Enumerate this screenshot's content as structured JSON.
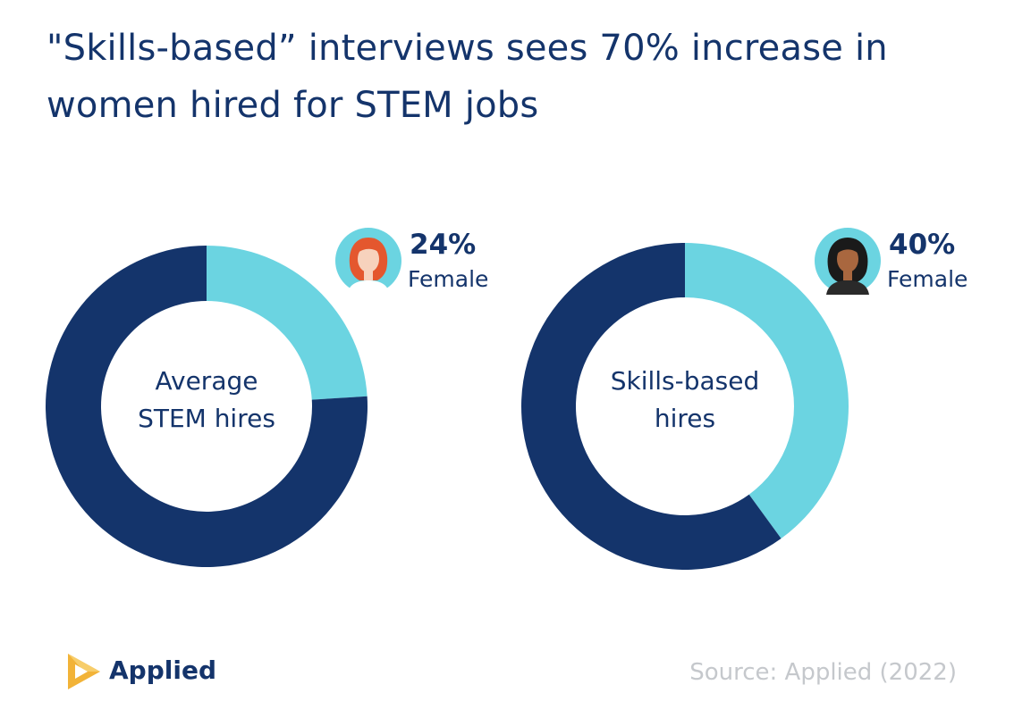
{
  "title": "\"Skills-based” interviews sees 70% increase in women hired for STEM jobs",
  "colors": {
    "navy": "#14346b",
    "cyan": "#6bd4e1",
    "source_gray": "#c5c8cc",
    "logo_gold": "#f2b338"
  },
  "chart_data": [
    {
      "type": "pie",
      "style": "donut",
      "center_label": [
        "Average",
        "STEM hires"
      ],
      "slices": [
        {
          "label": "Female",
          "value": 24,
          "display": "24%",
          "color": "#6bd4e1"
        },
        {
          "label": "",
          "value": 76,
          "color": "#14346b"
        }
      ],
      "avatar_icon": "red-haired-woman-icon"
    },
    {
      "type": "pie",
      "style": "donut",
      "center_label": [
        "Skills-based",
        "hires"
      ],
      "slices": [
        {
          "label": "Female",
          "value": 40,
          "display": "40%",
          "color": "#6bd4e1"
        },
        {
          "label": "",
          "value": 60,
          "color": "#14346b"
        }
      ],
      "avatar_icon": "dark-haired-woman-icon"
    }
  ],
  "brand": {
    "name": "Applied",
    "icon": "applied-play-logo-icon"
  },
  "source": "Source: Applied (2022)"
}
